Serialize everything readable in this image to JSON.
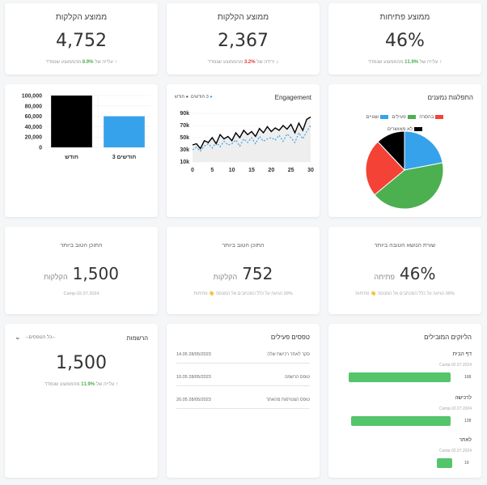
{
  "stats": [
    {
      "title": "ממוצע פתיחות",
      "value": "46%",
      "foot_pre": "עלייה של ",
      "foot_pct": "11.9%",
      "foot_post": " מהממוצע שנמדד",
      "trend": "up",
      "arrow": "↑"
    },
    {
      "title": "ממוצע הקלקות",
      "value": "2,367",
      "foot_pre": "ירידה של ",
      "foot_pct": "3.2%",
      "foot_post": " מהממוצע שנמדד",
      "trend": "down",
      "arrow": "↓"
    },
    {
      "title": "ממוצע הקלקות",
      "value": "4,752",
      "foot_pre": "עלייה של ",
      "foot_pct": "8.9%",
      "foot_post": " מהממוצע שנמדד",
      "trend": "up",
      "arrow": "↑"
    }
  ],
  "distribution": {
    "title": "התפלגות נמענים",
    "legend": [
      {
        "label": "שגויים",
        "color": "#36a2eb"
      },
      {
        "label": "פעילים",
        "color": "#4caf50"
      },
      {
        "label": "בהסרה",
        "color": "#f44336"
      },
      {
        "label": "לא מאושרים",
        "color": "#000000"
      }
    ],
    "slices": [
      {
        "label": "שגויים",
        "value": 22,
        "color": "#36a2eb"
      },
      {
        "label": "פעילים",
        "value": 42,
        "color": "#4caf50"
      },
      {
        "label": "בהסרה",
        "value": 24,
        "color": "#f44336"
      },
      {
        "label": "לא מאושרים",
        "value": 12,
        "color": "#000000"
      }
    ]
  },
  "engagement": {
    "title": "Engagement",
    "legend": [
      {
        "label": "3 חודשים",
        "color": "#36a2eb"
      },
      {
        "label": "חודש",
        "color": "#000000"
      }
    ]
  },
  "bar": {
    "categories": [
      "חודש",
      "3 חודשים"
    ],
    "values": [
      100000,
      60000
    ],
    "colors": [
      "#000000",
      "#36a2eb"
    ]
  },
  "chart_data": [
    {
      "type": "pie",
      "title": "התפלגות נמענים",
      "labels": [
        "שגויים",
        "פעילים",
        "בהסרה",
        "לא מאושרים"
      ],
      "values": [
        22,
        42,
        24,
        12
      ]
    },
    {
      "type": "line",
      "title": "Engagement",
      "x": [
        0,
        1,
        2,
        3,
        4,
        5,
        6,
        7,
        8,
        9,
        10,
        11,
        12,
        13,
        14,
        15,
        16,
        17,
        18,
        19,
        20,
        21,
        22,
        23,
        24,
        25,
        26,
        27,
        28,
        29,
        30
      ],
      "xticks": [
        "0",
        "5",
        "10",
        "15",
        "20",
        "25",
        "30"
      ],
      "yticks": [
        "10k",
        "30k",
        "50k",
        "70k",
        "90k"
      ],
      "ylim": [
        10000,
        90000
      ],
      "series": [
        {
          "name": "חודש",
          "values": [
            38000,
            40000,
            32000,
            45000,
            42000,
            50000,
            40000,
            55000,
            48000,
            52000,
            45000,
            58000,
            50000,
            62000,
            55000,
            60000,
            52000,
            65000,
            58000,
            68000,
            60000,
            66000,
            62000,
            70000,
            64000,
            72000,
            58000,
            74000,
            62000,
            80000,
            84000
          ]
        },
        {
          "name": "3 חודשים",
          "values": [
            30000,
            34000,
            28000,
            36000,
            40000,
            33000,
            42000,
            35000,
            44000,
            38000,
            40000,
            46000,
            36000,
            48000,
            42000,
            50000,
            40000,
            52000,
            44000,
            48000,
            50000,
            46000,
            54000,
            44000,
            56000,
            50000,
            42000,
            58000,
            48000,
            60000,
            70000
          ]
        }
      ]
    },
    {
      "type": "bar",
      "categories": [
        "חודש",
        "3 חודשים"
      ],
      "values": [
        100000,
        60000
      ],
      "yticks": [
        "0",
        "20,000",
        "40,000",
        "60,000",
        "80,000",
        "100,000"
      ],
      "ylim": [
        0,
        100000
      ]
    }
  ],
  "best": [
    {
      "title": "שורת הנושא הטובה ביותר",
      "value": "46%",
      "unit": "פתיחה",
      "foot": "99% הגיעה על כלל המכתבים אל המנוסה  👋  פתיחות"
    },
    {
      "title": "התוכן הטוב ביותר",
      "value": "752",
      "unit": "הקלקות",
      "foot": "99% הגיעה על כלל המכתבים אל המנוסה  👋  פתיחות"
    },
    {
      "title": "התוכן הטוב ביותר",
      "value": "1,500",
      "unit": "הקלקות",
      "foot": "Camp-02.07.2024"
    }
  ],
  "leads": {
    "title": "הליוקים המובילים",
    "items": [
      {
        "name": "דף הבית",
        "sub": "Camp-02.07.2024",
        "value": "168",
        "frac": 1.0
      },
      {
        "name": "לרכישה",
        "sub": "Camp-02.07.2024",
        "value": "128",
        "frac": 0.98
      },
      {
        "name": "לאתר",
        "sub": "Camp-02.07.2024",
        "value": "19",
        "frac": 0.15
      }
    ]
  },
  "activity": {
    "title": "טפסים פעילים",
    "rows": [
      {
        "date": "14.05 28/05/2023",
        "text": "סקר לאתר רכישת שלה"
      },
      {
        "date": "10.05 28/05/2023",
        "text": "טופס הרשמה"
      },
      {
        "date": "20.05 28/05/2023",
        "text": "טופס הצטרפות מהאתר"
      }
    ]
  },
  "registrations": {
    "title": "הרשמות",
    "filter": "--כל הטפסים--",
    "value": "1,500",
    "foot_pre": "עלייה של ",
    "foot_pct": "11.9%",
    "foot_post": " מהממוצע שנמדד",
    "arrow": "↑"
  }
}
